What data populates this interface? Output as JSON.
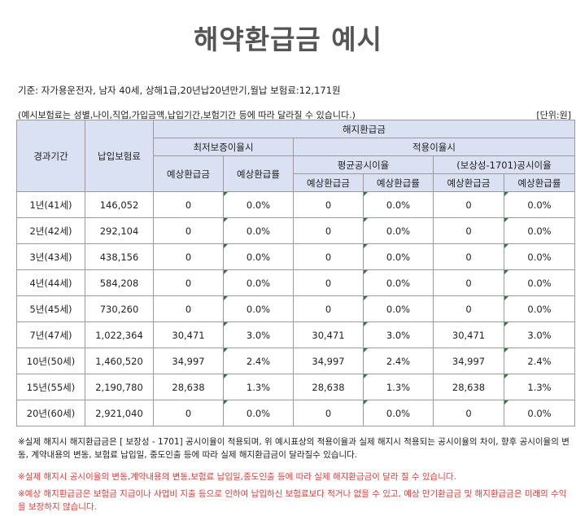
{
  "title": "해약환급금 예시",
  "info_line": "기준: 자가용운전자, 남자 40세, 상해1급,20년납20년만기,월납 보험료:12,171원",
  "note_left": "(예시보험료는 성별,나이,직업,가입금액,납입기간,보험기간 등에 따라 달라질 수 있습니다.)",
  "note_right": "[단위:원]",
  "headers": {
    "period": "경과기간",
    "premium": "납입보험료",
    "refund_group": "해지환급금",
    "min_guarantee": "최저보증이율시",
    "applied_rate": "적용이율시",
    "avg_rate": "평균공시이율",
    "product_rate": "(보상성-1701)공시이율",
    "expected_amount": "예상환급금",
    "expected_ratio": "예상환급률"
  },
  "rows": [
    {
      "period": "1년(41세)",
      "premium": "146,052",
      "min_amt": "0",
      "min_rate": "0.0%",
      "avg_amt": "0",
      "avg_rate": "0.0%",
      "prod_amt": "0",
      "prod_rate": "0.0%"
    },
    {
      "period": "2년(42세)",
      "premium": "292,104",
      "min_amt": "0",
      "min_rate": "0.0%",
      "avg_amt": "0",
      "avg_rate": "0.0%",
      "prod_amt": "0",
      "prod_rate": "0.0%"
    },
    {
      "period": "3년(43세)",
      "premium": "438,156",
      "min_amt": "0",
      "min_rate": "0.0%",
      "avg_amt": "0",
      "avg_rate": "0.0%",
      "prod_amt": "0",
      "prod_rate": "0.0%"
    },
    {
      "period": "4년(44세)",
      "premium": "584,208",
      "min_amt": "0",
      "min_rate": "0.0%",
      "avg_amt": "0",
      "avg_rate": "0.0%",
      "prod_amt": "0",
      "prod_rate": "0.0%"
    },
    {
      "period": "5년(45세)",
      "premium": "730,260",
      "min_amt": "0",
      "min_rate": "0.0%",
      "avg_amt": "0",
      "avg_rate": "0.0%",
      "prod_amt": "0",
      "prod_rate": "0.0%"
    },
    {
      "period": "7년(47세)",
      "premium": "1,022,364",
      "min_amt": "30,471",
      "min_rate": "3.0%",
      "avg_amt": "30,471",
      "avg_rate": "3.0%",
      "prod_amt": "30,471",
      "prod_rate": "3.0%"
    },
    {
      "period": "10년(50세)",
      "premium": "1,460,520",
      "min_amt": "34,997",
      "min_rate": "2.4%",
      "avg_amt": "34,997",
      "avg_rate": "2.4%",
      "prod_amt": "34,997",
      "prod_rate": "2.4%"
    },
    {
      "period": "15년(55세)",
      "premium": "2,190,780",
      "min_amt": "28,638",
      "min_rate": "1.3%",
      "avg_amt": "28,638",
      "avg_rate": "1.3%",
      "prod_amt": "28,638",
      "prod_rate": "1.3%"
    },
    {
      "period": "20년(60세)",
      "premium": "2,921,040",
      "min_amt": "0",
      "min_rate": "0.0%",
      "avg_amt": "0",
      "avg_rate": "0.0%",
      "prod_amt": "0",
      "prod_rate": "0.0%"
    }
  ],
  "footnote_1": "※실제 해지시 해지환급금은 [ 보장성 - 1701] 공시이율이 적용되며, 위 예시표상의 적용이율과 실제 해지시 적용되는 공시이율의 차이, 향후 공시이율의 변동, 계약내용의 변동, 보험료 납입일, 중도인출 등에 따라 실제 해지환급금이 달라질수 있습니다.",
  "footnote_2": "※실제 해지시 공시이율의 변동,계약내용의 변동,보험료 납입일,중도인출 등에 따라 실제 해지환급금이 달라 질 수 있습니다.",
  "footnote_3": "※예상 해지환급금은 보험금 지급이나 사업비 지출 등으로 인하여 납입하신 보험료보다 적거나 없을 수 있고, 예상 만기환급금 및 해지환급금은 미래의 수익을 보장하지 않습니다.",
  "colors": {
    "header_bg": "#d9e1f2",
    "title": "#555555",
    "warning": "#e53935",
    "cell_marker": "#2e7d32"
  }
}
